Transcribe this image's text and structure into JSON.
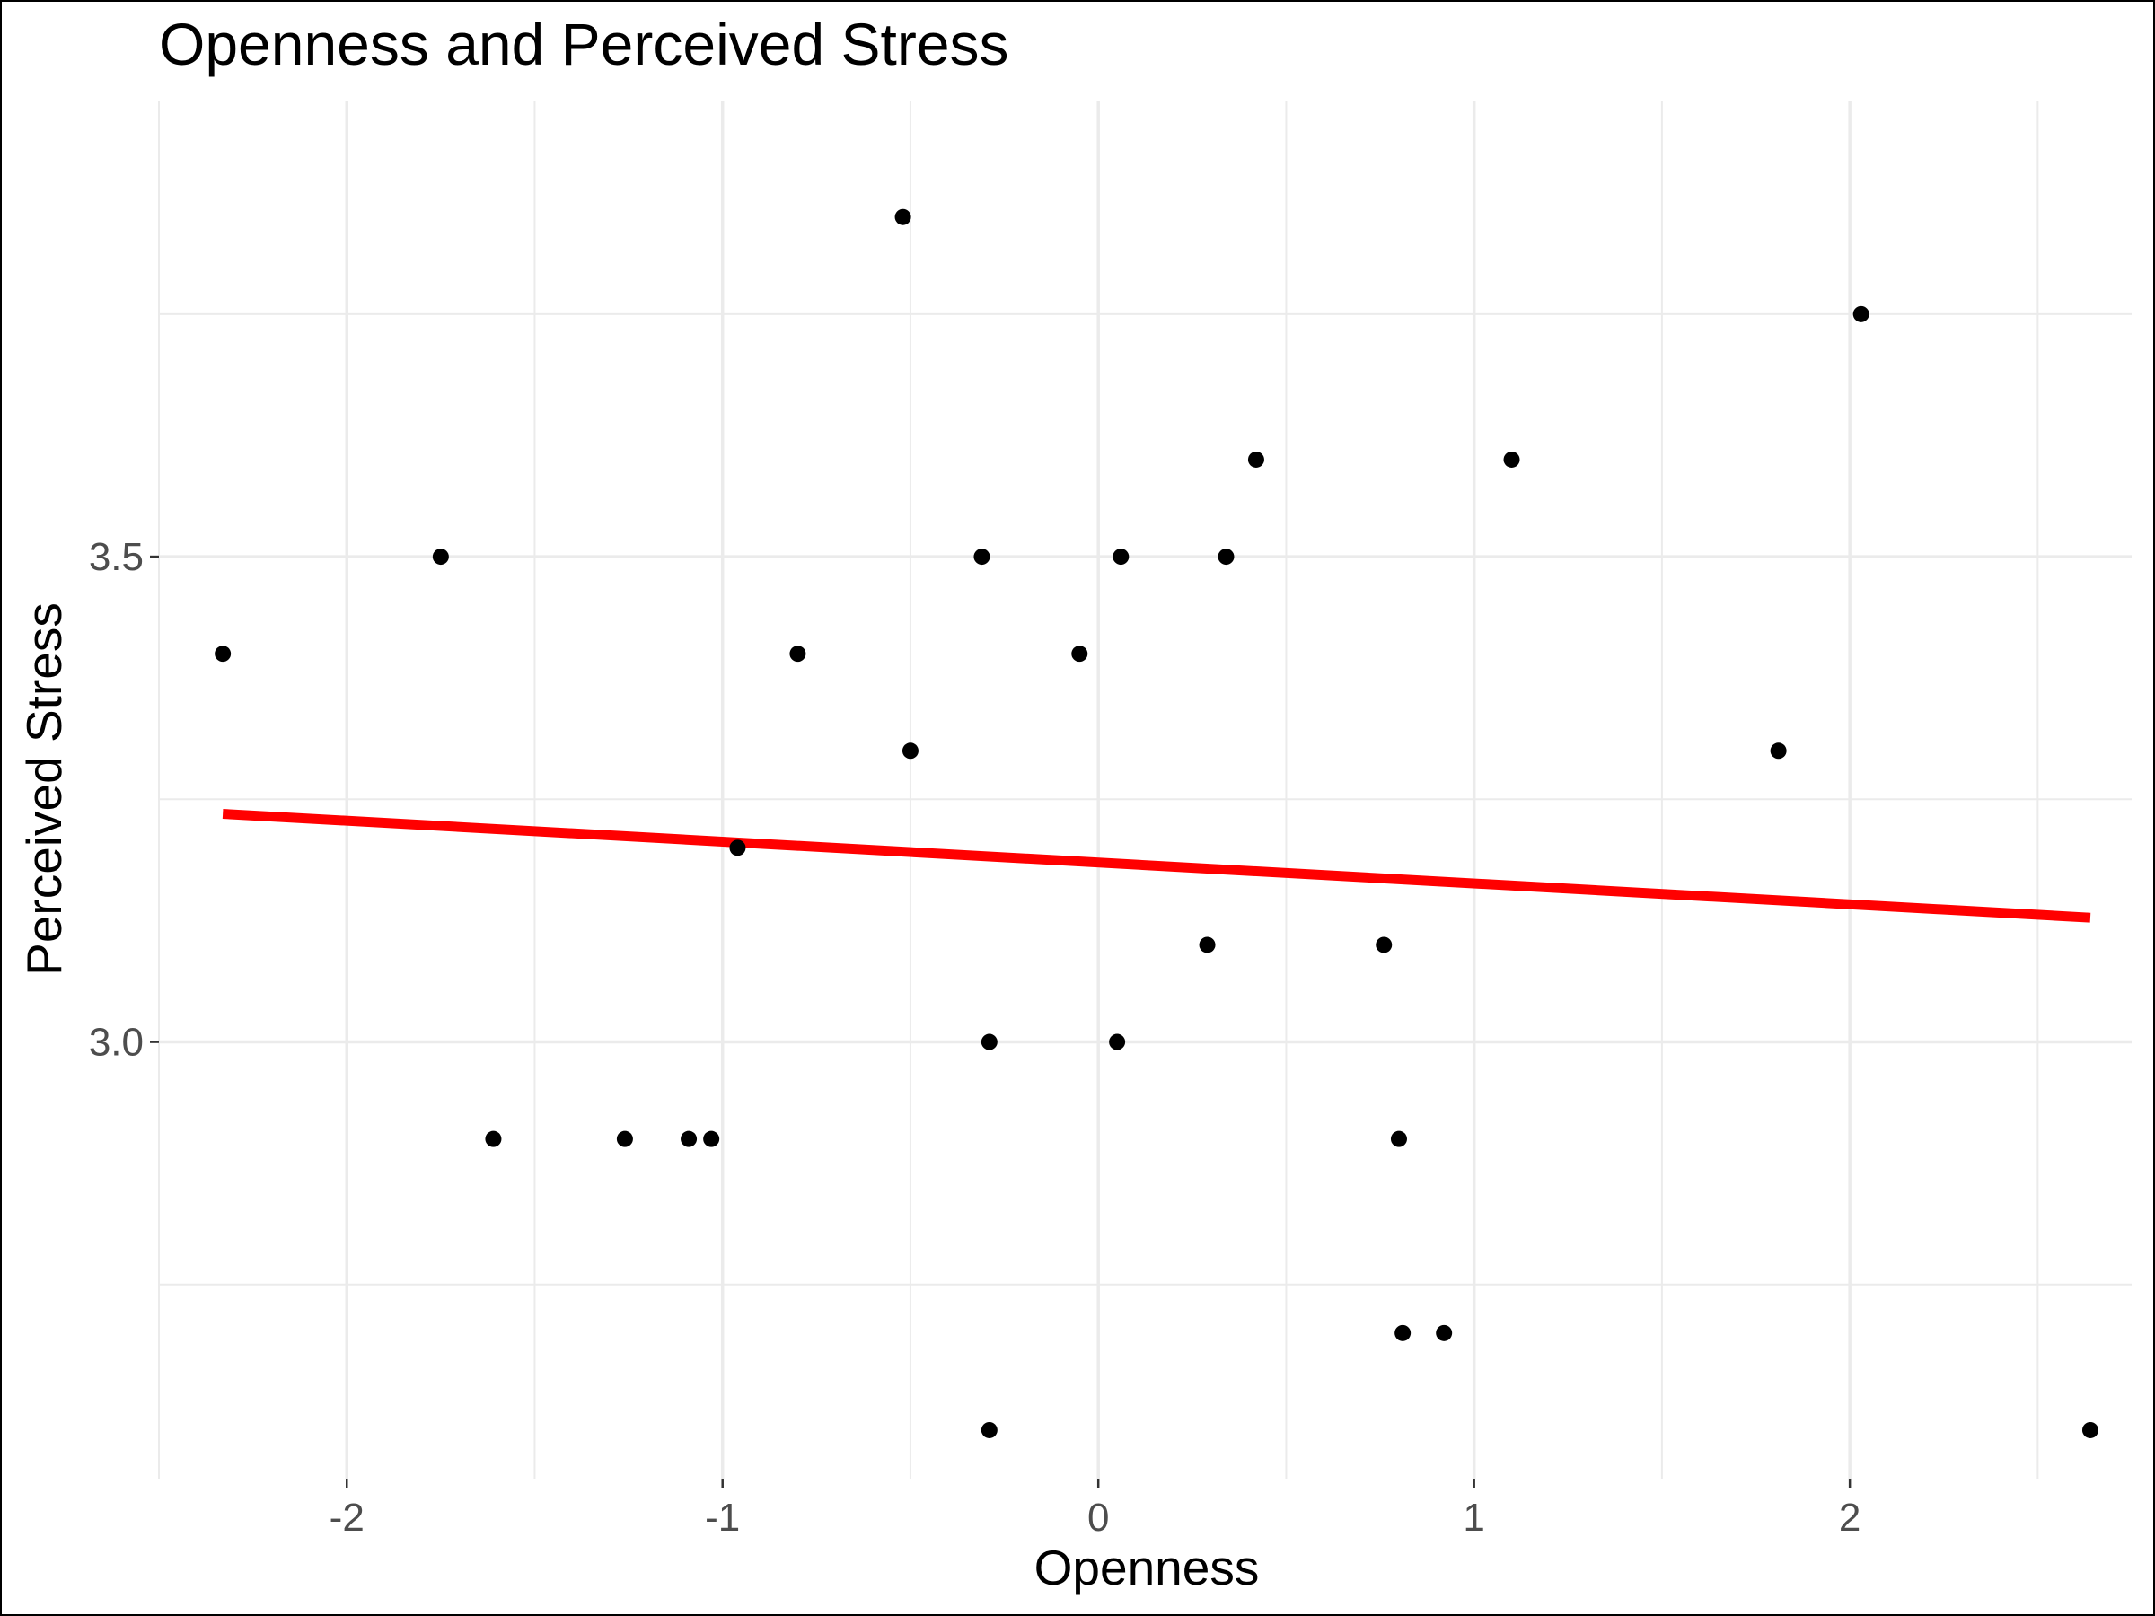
{
  "chart_data": {
    "type": "scatter",
    "title": "Openness and Perceived Stress",
    "xlabel": "Openness",
    "ylabel": "Perceived Stress",
    "xlim": [
      -2.5,
      2.75
    ],
    "ylim": [
      2.55,
      3.97
    ],
    "x_ticks": [
      -2,
      -1,
      0,
      1,
      2
    ],
    "x_tick_labels": [
      "-2",
      "-1",
      "0",
      "1",
      "2"
    ],
    "y_ticks": [
      3.0,
      3.5
    ],
    "y_tick_labels": [
      "3.0",
      "3.5"
    ],
    "grid": true,
    "points": [
      {
        "x": -2.33,
        "y": 3.4
      },
      {
        "x": -1.75,
        "y": 3.5
      },
      {
        "x": -1.61,
        "y": 2.9
      },
      {
        "x": -1.26,
        "y": 2.9
      },
      {
        "x": -1.09,
        "y": 2.9
      },
      {
        "x": -1.03,
        "y": 2.9
      },
      {
        "x": -0.96,
        "y": 3.2
      },
      {
        "x": -0.8,
        "y": 3.4
      },
      {
        "x": -0.52,
        "y": 3.85
      },
      {
        "x": -0.5,
        "y": 3.3
      },
      {
        "x": -0.31,
        "y": 3.5
      },
      {
        "x": -0.29,
        "y": 3.0
      },
      {
        "x": -0.29,
        "y": 2.6
      },
      {
        "x": -0.05,
        "y": 3.4
      },
      {
        "x": 0.05,
        "y": 3.0
      },
      {
        "x": 0.06,
        "y": 3.5
      },
      {
        "x": 0.29,
        "y": 3.1
      },
      {
        "x": 0.34,
        "y": 3.5
      },
      {
        "x": 0.42,
        "y": 3.6
      },
      {
        "x": 0.76,
        "y": 3.1
      },
      {
        "x": 0.8,
        "y": 2.9
      },
      {
        "x": 0.81,
        "y": 2.7
      },
      {
        "x": 0.92,
        "y": 2.7
      },
      {
        "x": 1.1,
        "y": 3.6
      },
      {
        "x": 1.81,
        "y": 3.3
      },
      {
        "x": 2.03,
        "y": 3.75
      },
      {
        "x": 2.64,
        "y": 2.6
      }
    ],
    "trend_line": {
      "x": [
        -2.33,
        2.64
      ],
      "y": [
        3.235,
        3.128
      ]
    },
    "colors": {
      "points": "#000000",
      "trend_line": "#ff0000",
      "grid": "#ebebeb",
      "tick_label": "#4d4d4d"
    }
  }
}
